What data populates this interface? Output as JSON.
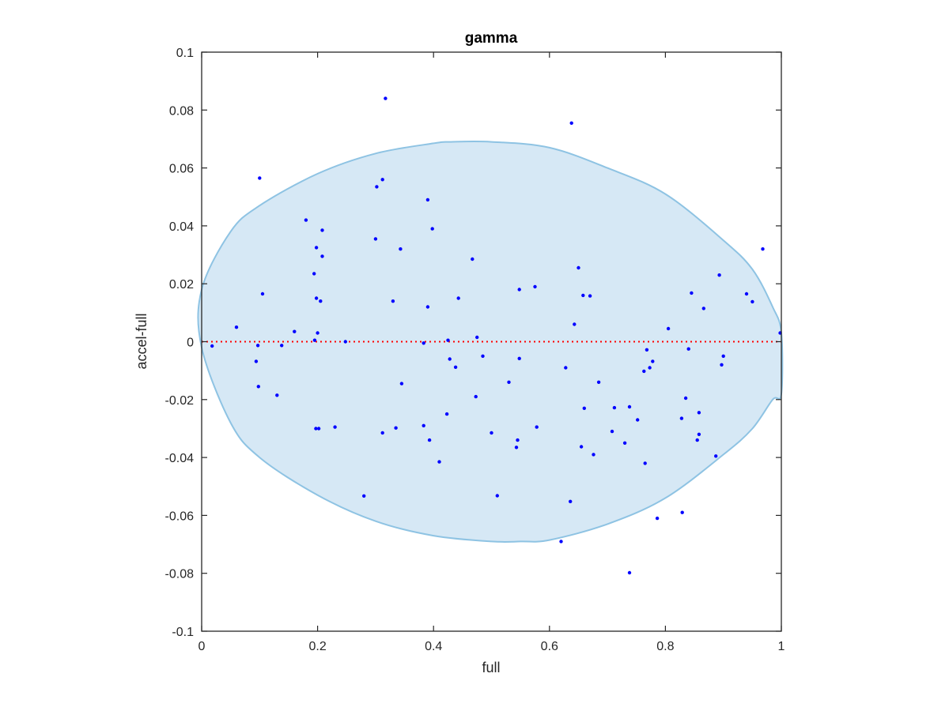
{
  "chart_data": {
    "type": "scatter",
    "title": "gamma",
    "xlabel": "full",
    "ylabel": "accel-full",
    "xlim": [
      0,
      1
    ],
    "ylim": [
      -0.1,
      0.1
    ],
    "xticks": [
      0,
      0.2,
      0.4,
      0.6,
      0.8,
      1
    ],
    "xtick_labels": [
      "0",
      "0.2",
      "0.4",
      "0.6",
      "0.8",
      "1"
    ],
    "yticks": [
      -0.1,
      -0.08,
      -0.06,
      -0.04,
      -0.02,
      0,
      0.02,
      0.04,
      0.06,
      0.08,
      0.1
    ],
    "ytick_labels": [
      "-0.1",
      "-0.08",
      "-0.06",
      "-0.04",
      "-0.02",
      "0",
      "0.02",
      "0.04",
      "0.06",
      "0.08",
      "0.1"
    ],
    "grid": false,
    "reference_line": {
      "y": 0,
      "style": "dotted",
      "color": "#ff0000"
    },
    "ellipse": {
      "center": [
        0.5,
        0.0
      ],
      "upper_boundary": [
        [
          0.0,
          0.018
        ],
        [
          0.05,
          0.038
        ],
        [
          0.1,
          0.047
        ],
        [
          0.2,
          0.058
        ],
        [
          0.3,
          0.065
        ],
        [
          0.4,
          0.0685
        ],
        [
          0.43,
          0.069
        ],
        [
          0.5,
          0.069
        ],
        [
          0.6,
          0.067
        ],
        [
          0.7,
          0.06
        ],
        [
          0.8,
          0.051
        ],
        [
          0.9,
          0.035
        ],
        [
          0.95,
          0.025
        ],
        [
          0.985,
          0.012
        ],
        [
          1.0,
          0.003
        ]
      ],
      "lower_boundary": [
        [
          0.0,
          -0.002
        ],
        [
          0.05,
          -0.028
        ],
        [
          0.1,
          -0.04
        ],
        [
          0.2,
          -0.053
        ],
        [
          0.3,
          -0.062
        ],
        [
          0.4,
          -0.067
        ],
        [
          0.5,
          -0.069
        ],
        [
          0.55,
          -0.069
        ],
        [
          0.6,
          -0.0685
        ],
        [
          0.7,
          -0.063
        ],
        [
          0.8,
          -0.054
        ],
        [
          0.9,
          -0.039
        ],
        [
          0.95,
          -0.03
        ],
        [
          0.985,
          -0.02
        ],
        [
          1.0,
          -0.018
        ]
      ],
      "fill_color": "#d6e8f5",
      "edge_color": "#8ec3e3"
    },
    "series": [
      {
        "marker_color": "#0000ff",
        "points": [
          [
            0.317,
            0.084
          ],
          [
            0.638,
            0.0755
          ],
          [
            0.1,
            0.0565
          ],
          [
            0.312,
            0.056
          ],
          [
            0.302,
            0.0535
          ],
          [
            0.39,
            0.049
          ],
          [
            0.18,
            0.042
          ],
          [
            0.398,
            0.039
          ],
          [
            0.208,
            0.0385
          ],
          [
            0.3,
            0.0355
          ],
          [
            0.343,
            0.032
          ],
          [
            0.968,
            0.032
          ],
          [
            0.198,
            0.0325
          ],
          [
            0.208,
            0.0295
          ],
          [
            0.467,
            0.0285
          ],
          [
            0.65,
            0.0255
          ],
          [
            0.194,
            0.0235
          ],
          [
            0.893,
            0.023
          ],
          [
            0.575,
            0.019
          ],
          [
            0.548,
            0.018
          ],
          [
            0.105,
            0.0165
          ],
          [
            0.658,
            0.016
          ],
          [
            0.67,
            0.0158
          ],
          [
            0.845,
            0.0168
          ],
          [
            0.94,
            0.0165
          ],
          [
            0.443,
            0.015
          ],
          [
            0.198,
            0.015
          ],
          [
            0.205,
            0.014
          ],
          [
            0.33,
            0.014
          ],
          [
            0.95,
            0.0138
          ],
          [
            0.39,
            0.012
          ],
          [
            0.866,
            0.0115
          ],
          [
            0.643,
            0.006
          ],
          [
            0.06,
            0.005
          ],
          [
            0.805,
            0.0045
          ],
          [
            0.16,
            0.0035
          ],
          [
            0.2,
            0.003
          ],
          [
            0.998,
            0.003
          ],
          [
            0.475,
            0.0015
          ],
          [
            0.195,
            0.0005
          ],
          [
            0.425,
            0.0005
          ],
          [
            0.248,
            0.0
          ],
          [
            0.383,
            -0.0005
          ],
          [
            0.018,
            -0.0015
          ],
          [
            0.097,
            -0.0013
          ],
          [
            0.138,
            -0.0013
          ],
          [
            0.84,
            -0.0025
          ],
          [
            0.768,
            -0.0028
          ],
          [
            0.485,
            -0.005
          ],
          [
            0.9,
            -0.005
          ],
          [
            0.094,
            -0.0068
          ],
          [
            0.428,
            -0.006
          ],
          [
            0.548,
            -0.0058
          ],
          [
            0.778,
            -0.0068
          ],
          [
            0.897,
            -0.008
          ],
          [
            0.438,
            -0.0088
          ],
          [
            0.628,
            -0.009
          ],
          [
            0.773,
            -0.009
          ],
          [
            0.763,
            -0.0102
          ],
          [
            0.53,
            -0.014
          ],
          [
            0.685,
            -0.014
          ],
          [
            0.345,
            -0.0145
          ],
          [
            0.098,
            -0.0155
          ],
          [
            0.13,
            -0.0185
          ],
          [
            0.473,
            -0.019
          ],
          [
            0.835,
            -0.0195
          ],
          [
            0.712,
            -0.0228
          ],
          [
            0.738,
            -0.0225
          ],
          [
            0.66,
            -0.023
          ],
          [
            0.858,
            -0.0245
          ],
          [
            0.423,
            -0.025
          ],
          [
            0.752,
            -0.027
          ],
          [
            0.828,
            -0.0265
          ],
          [
            0.383,
            -0.029
          ],
          [
            0.335,
            -0.0298
          ],
          [
            0.23,
            -0.0295
          ],
          [
            0.578,
            -0.0295
          ],
          [
            0.197,
            -0.03
          ],
          [
            0.202,
            -0.03
          ],
          [
            0.708,
            -0.031
          ],
          [
            0.5,
            -0.0315
          ],
          [
            0.312,
            -0.0315
          ],
          [
            0.858,
            -0.032
          ],
          [
            0.855,
            -0.034
          ],
          [
            0.393,
            -0.034
          ],
          [
            0.545,
            -0.034
          ],
          [
            0.73,
            -0.035
          ],
          [
            0.543,
            -0.0365
          ],
          [
            0.655,
            -0.0363
          ],
          [
            0.676,
            -0.039
          ],
          [
            0.887,
            -0.0395
          ],
          [
            0.41,
            -0.0415
          ],
          [
            0.765,
            -0.042
          ],
          [
            0.28,
            -0.0533
          ],
          [
            0.51,
            -0.0532
          ],
          [
            0.636,
            -0.0552
          ],
          [
            0.829,
            -0.059
          ],
          [
            0.786,
            -0.061
          ],
          [
            0.62,
            -0.069
          ],
          [
            0.738,
            -0.0798
          ]
        ]
      }
    ]
  }
}
